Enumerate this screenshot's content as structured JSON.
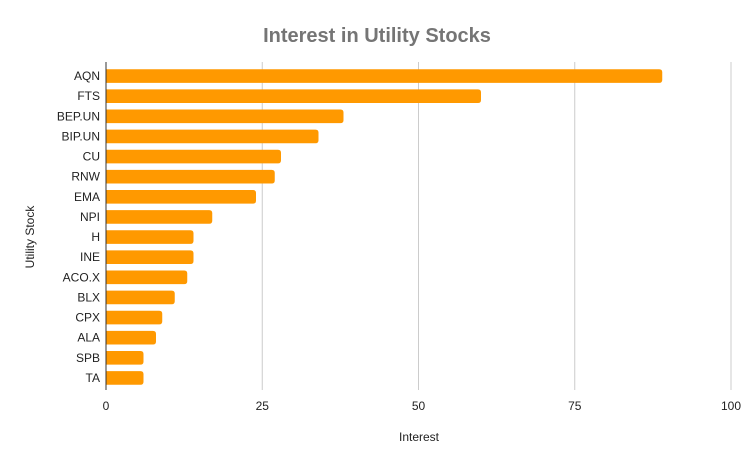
{
  "chart_data": {
    "type": "bar",
    "orientation": "horizontal",
    "title": "Interest in Utility Stocks",
    "xlabel": "Interest",
    "ylabel": "Utility Stock",
    "categories": [
      "AQN",
      "FTS",
      "BEP.UN",
      "BIP.UN",
      "CU",
      "RNW",
      "EMA",
      "NPI",
      "H",
      "INE",
      "ACO.X",
      "BLX",
      "CPX",
      "ALA",
      "SPB",
      "TA"
    ],
    "values": [
      89,
      60,
      38,
      34,
      28,
      27,
      24,
      17,
      14,
      14,
      13,
      11,
      9,
      8,
      6,
      6
    ],
    "xlim": [
      0,
      100
    ],
    "xticks": [
      0,
      25,
      50,
      75,
      100
    ],
    "grid": true,
    "legend": "none",
    "colors": {
      "bar": "#ff9900",
      "grid": "#cccccc",
      "axis": "#333333",
      "title": "#757575"
    }
  }
}
